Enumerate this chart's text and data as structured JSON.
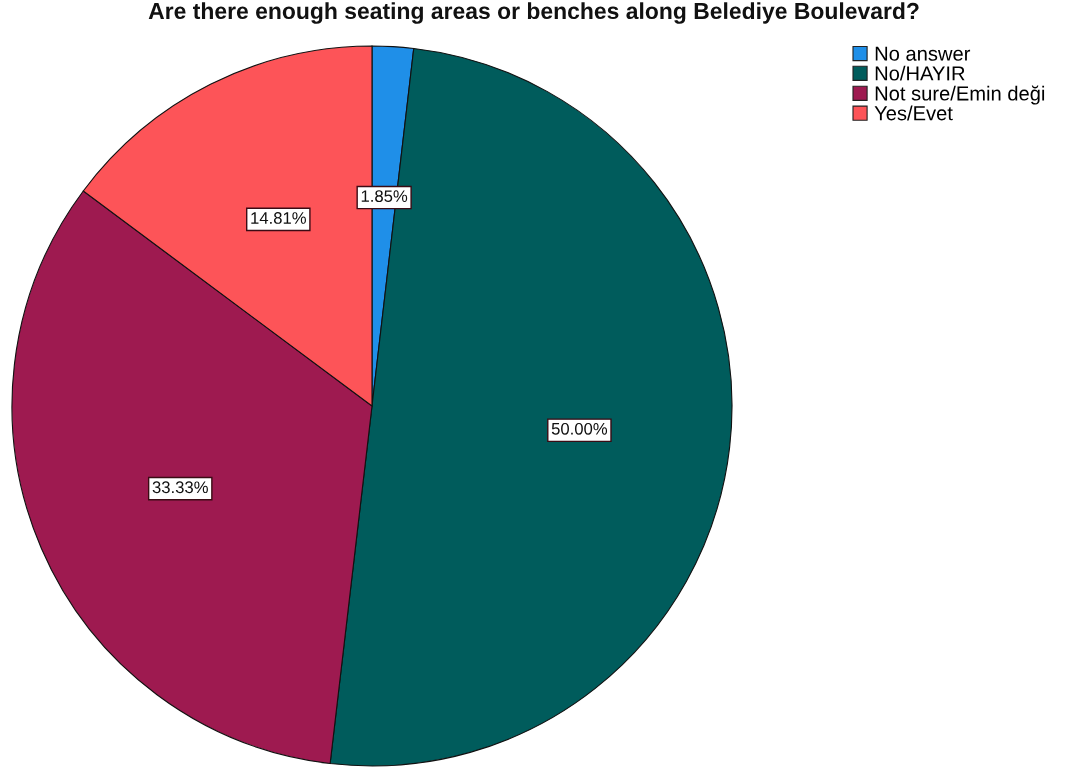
{
  "chart_data": {
    "type": "pie",
    "title": "Are there enough seating areas or benches along Belediye Boulevard?",
    "categories": [
      "No answer",
      "No/HAYIR",
      "Not sure/Emin deği",
      "Yes/Evet"
    ],
    "values": [
      1.85,
      50.0,
      33.33,
      14.81
    ],
    "colors": [
      "#1f8fe8",
      "#005c5c",
      "#9e1a50",
      "#fd5458"
    ],
    "value_labels": [
      "1.85%",
      "50.00%",
      "33.33%",
      "14.81%"
    ],
    "legend": "top right"
  }
}
